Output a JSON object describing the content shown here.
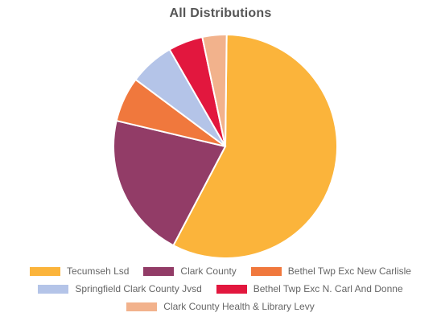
{
  "chart_data": {
    "type": "pie",
    "title": "All Distributions",
    "slices": [
      {
        "label": "Tecumseh Lsd",
        "value": 57.5,
        "color": "#FBB43B"
      },
      {
        "label": "Clark County",
        "value": 21.0,
        "color": "#923C67"
      },
      {
        "label": "Bethel Twp Exc New Carlisle",
        "value": 6.5,
        "color": "#F0783D"
      },
      {
        "label": "Springfield Clark County Jvsd",
        "value": 6.5,
        "color": "#B4C4E8"
      },
      {
        "label": "Bethel Twp Exc N. Carl And Donne",
        "value": 5.0,
        "color": "#E2173E"
      },
      {
        "label": "Clark County Health & Library Levy",
        "value": 3.5,
        "color": "#F2B28C"
      }
    ],
    "legend_position": "bottom"
  }
}
